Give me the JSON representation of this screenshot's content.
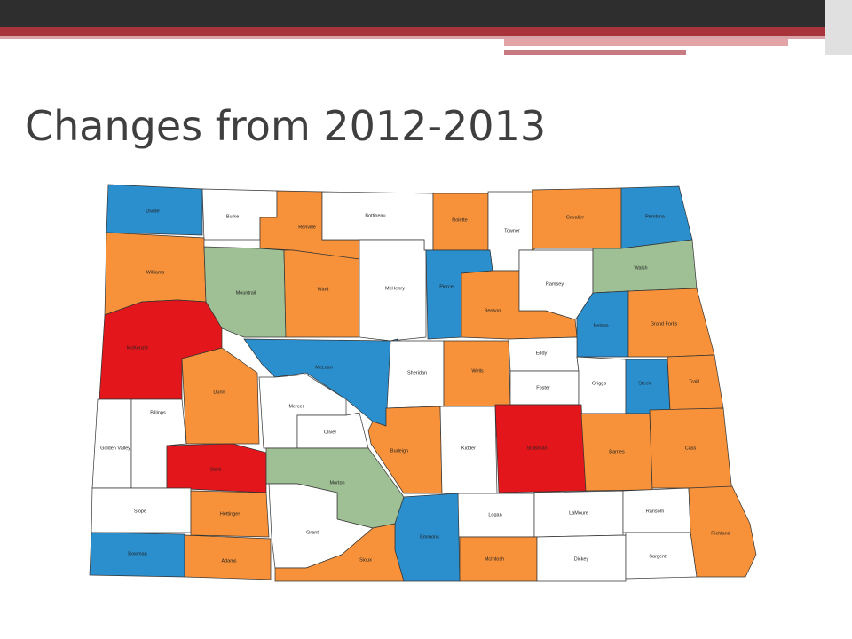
{
  "title": "Changes from 2012-2013",
  "counties": [
    {
      "name": "Divide",
      "color": "#2b8fce"
    },
    {
      "name": "Burke",
      "color": "#ffffff"
    },
    {
      "name": "Renville",
      "color": "#f7923a"
    },
    {
      "name": "Bottineau",
      "color": "#ffffff"
    },
    {
      "name": "Rolette",
      "color": "#f7923a"
    },
    {
      "name": "Towner",
      "color": "#ffffff"
    },
    {
      "name": "Cavalier",
      "color": "#f7923a"
    },
    {
      "name": "Pembina",
      "color": "#2b8fce"
    },
    {
      "name": "Williams",
      "color": "#f7923a"
    },
    {
      "name": "Mountrail",
      "color": "#9fc095"
    },
    {
      "name": "Ward",
      "color": "#f7923a"
    },
    {
      "name": "McHenry",
      "color": "#ffffff"
    },
    {
      "name": "Pierce",
      "color": "#2b8fce"
    },
    {
      "name": "Benson",
      "color": "#f7923a"
    },
    {
      "name": "Ramsey",
      "color": "#ffffff"
    },
    {
      "name": "Walsh",
      "color": "#9fc095"
    },
    {
      "name": "Nelson",
      "color": "#2b8fce"
    },
    {
      "name": "Grand Forks",
      "color": "#f7923a"
    },
    {
      "name": "McKenzie",
      "color": "#e3161b"
    },
    {
      "name": "McLean",
      "color": "#2b8fce"
    },
    {
      "name": "Sheridan",
      "color": "#ffffff"
    },
    {
      "name": "Wells",
      "color": "#f7923a"
    },
    {
      "name": "Eddy",
      "color": "#ffffff"
    },
    {
      "name": "Foster",
      "color": "#ffffff"
    },
    {
      "name": "Griggs",
      "color": "#ffffff"
    },
    {
      "name": "Steele",
      "color": "#2b8fce"
    },
    {
      "name": "Traill",
      "color": "#f7923a"
    },
    {
      "name": "Dunn",
      "color": "#f7923a"
    },
    {
      "name": "Mercer",
      "color": "#ffffff"
    },
    {
      "name": "Oliver",
      "color": "#ffffff"
    },
    {
      "name": "Burleigh",
      "color": "#f7923a"
    },
    {
      "name": "Kidder",
      "color": "#ffffff"
    },
    {
      "name": "Stutsman",
      "color": "#e3161b"
    },
    {
      "name": "Barnes",
      "color": "#f7923a"
    },
    {
      "name": "Cass",
      "color": "#f7923a"
    },
    {
      "name": "Golden Valley",
      "color": "#ffffff"
    },
    {
      "name": "Billings",
      "color": "#ffffff"
    },
    {
      "name": "Stark",
      "color": "#e3161b"
    },
    {
      "name": "Morton",
      "color": "#9fc095"
    },
    {
      "name": "Slope",
      "color": "#ffffff"
    },
    {
      "name": "Hettinger",
      "color": "#f7923a"
    },
    {
      "name": "Grant",
      "color": "#ffffff"
    },
    {
      "name": "Logan",
      "color": "#ffffff"
    },
    {
      "name": "LaMoure",
      "color": "#ffffff"
    },
    {
      "name": "Ransom",
      "color": "#ffffff"
    },
    {
      "name": "Richland",
      "color": "#f7923a"
    },
    {
      "name": "Emmons",
      "color": "#2b8fce"
    },
    {
      "name": "Bowman",
      "color": "#2b8fce"
    },
    {
      "name": "Adams",
      "color": "#f7923a"
    },
    {
      "name": "Sioux",
      "color": "#f7923a"
    },
    {
      "name": "McIntosh",
      "color": "#f7923a"
    },
    {
      "name": "Dickey",
      "color": "#ffffff"
    },
    {
      "name": "Sargent",
      "color": "#ffffff"
    }
  ]
}
